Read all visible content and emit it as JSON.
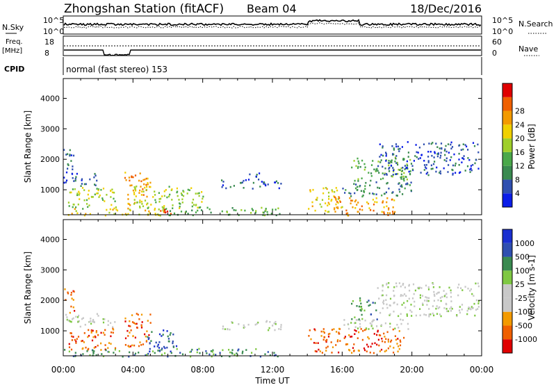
{
  "header": {
    "station": "Zhongshan Station (fitACF)",
    "beam": "Beam 04",
    "date": "18/Dec/2016"
  },
  "panels": {
    "nsky": {
      "label": "N.Sky",
      "y_ticks": [
        "10^5",
        "10^0"
      ],
      "right_label": "N.Search",
      "right_ticks": [
        "10^5",
        "10^0"
      ]
    },
    "freq": {
      "label": "Freq. [MHz]",
      "y_ticks": [
        "18",
        "8"
      ],
      "right_label": "Nave",
      "right_ticks": [
        "60",
        "0"
      ]
    },
    "cpid": {
      "label": "CPID",
      "value": "normal (fast stereo) 153"
    }
  },
  "x_axis": {
    "label": "Time UT",
    "ticks": [
      "00:00",
      "04:00",
      "08:00",
      "12:00",
      "16:00",
      "20:00",
      "00:00"
    ]
  },
  "colors": {
    "power_scale": [
      "#0b1de8",
      "#2f4fb0",
      "#3a8a50",
      "#4aa84a",
      "#9fcf2a",
      "#f0d000",
      "#f39a00",
      "#f06000",
      "#e00000"
    ],
    "velocity_scale": [
      "#e00000",
      "#f06000",
      "#f39a00",
      "#c8c8c8",
      "#c8c8c8",
      "#7fc843",
      "#3a8a50",
      "#2f4fb0",
      "#1a2fd0"
    ]
  },
  "chart_data": [
    {
      "type": "heatmap",
      "title": "Power",
      "xlabel": "Time UT",
      "ylabel": "Slant Range [km]",
      "xlim": [
        0,
        24
      ],
      "ylim": [
        180,
        4650
      ],
      "y_ticks": [
        "1000",
        "2000",
        "3000",
        "4000"
      ],
      "colorbar": {
        "label": "Power [dB]",
        "ticks": [
          "4",
          "8",
          "12",
          "16",
          "20",
          "24",
          "28"
        ],
        "range": [
          0,
          30
        ]
      },
      "regions": [
        {
          "t0": 0.0,
          "t1": 0.6,
          "r0": 1600,
          "r1": 2400,
          "level": 1
        },
        {
          "t0": 0.0,
          "t1": 2.0,
          "r0": 1150,
          "r1": 1600,
          "level": 1
        },
        {
          "t0": 0.2,
          "t1": 3.0,
          "r0": 400,
          "r1": 1100,
          "level": 4
        },
        {
          "t0": 0.0,
          "t1": 6.0,
          "r0": 180,
          "r1": 420,
          "level": 5
        },
        {
          "t0": 3.5,
          "t1": 5.0,
          "r0": 500,
          "r1": 1600,
          "level": 6
        },
        {
          "t0": 4.8,
          "t1": 6.2,
          "r0": 180,
          "r1": 380,
          "level": 8
        },
        {
          "t0": 4.0,
          "t1": 8.0,
          "r0": 400,
          "r1": 1150,
          "level": 4
        },
        {
          "t0": 6.0,
          "t1": 12.5,
          "r0": 180,
          "r1": 450,
          "level": 3
        },
        {
          "t0": 9.0,
          "t1": 12.5,
          "r0": 1050,
          "r1": 1350,
          "level": 1
        },
        {
          "t0": 10.5,
          "t1": 11.5,
          "r0": 1350,
          "r1": 1600,
          "level": 1
        },
        {
          "t0": 14.0,
          "t1": 16.0,
          "r0": 300,
          "r1": 1100,
          "level": 5
        },
        {
          "t0": 15.5,
          "t1": 19.0,
          "r0": 180,
          "r1": 800,
          "level": 6
        },
        {
          "t0": 16.0,
          "t1": 20.0,
          "r0": 800,
          "r1": 1350,
          "level": 2
        },
        {
          "t0": 16.5,
          "t1": 20.0,
          "r0": 1350,
          "r1": 2100,
          "level": 3
        },
        {
          "t0": 18.0,
          "t1": 23.8,
          "r0": 1500,
          "r1": 2600,
          "level": 1
        }
      ]
    },
    {
      "type": "heatmap",
      "title": "Velocity",
      "xlabel": "Time UT",
      "ylabel": "Slant Range [km]",
      "xlim": [
        0,
        24
      ],
      "ylim": [
        180,
        4650
      ],
      "y_ticks": [
        "1000",
        "2000",
        "3000",
        "4000"
      ],
      "colorbar": {
        "label": "Velocity [m s-1]",
        "ticks": [
          "1000",
          "500",
          "100",
          "25",
          "-25",
          "-100",
          "-500",
          "-1000"
        ],
        "range": [
          -1000,
          1000
        ]
      },
      "regions": [
        {
          "t0": 0.0,
          "t1": 0.6,
          "r0": 1600,
          "r1": 2400,
          "level": 1
        },
        {
          "t0": 0.0,
          "t1": 3.0,
          "r0": 1150,
          "r1": 1600,
          "level": 4
        },
        {
          "t0": 0.2,
          "t1": 3.0,
          "r0": 400,
          "r1": 1100,
          "level": 1
        },
        {
          "t0": 0.0,
          "t1": 6.0,
          "r0": 180,
          "r1": 420,
          "level": 6
        },
        {
          "t0": 3.5,
          "t1": 5.0,
          "r0": 500,
          "r1": 1600,
          "level": 1
        },
        {
          "t0": 4.8,
          "t1": 6.5,
          "r0": 300,
          "r1": 1100,
          "level": 7
        },
        {
          "t0": 6.0,
          "t1": 12.5,
          "r0": 180,
          "r1": 450,
          "level": 6
        },
        {
          "t0": 9.0,
          "t1": 12.5,
          "r0": 1050,
          "r1": 1350,
          "level": 4
        },
        {
          "t0": 14.0,
          "t1": 16.0,
          "r0": 300,
          "r1": 1100,
          "level": 1
        },
        {
          "t0": 16.0,
          "t1": 19.5,
          "r0": 300,
          "r1": 1100,
          "level": 1
        },
        {
          "t0": 16.0,
          "t1": 20.0,
          "r0": 1050,
          "r1": 1400,
          "level": 4
        },
        {
          "t0": 16.5,
          "t1": 18.0,
          "r0": 1400,
          "r1": 2100,
          "level": 6
        },
        {
          "t0": 18.0,
          "t1": 23.8,
          "r0": 1500,
          "r1": 2600,
          "level": 4
        }
      ]
    }
  ]
}
